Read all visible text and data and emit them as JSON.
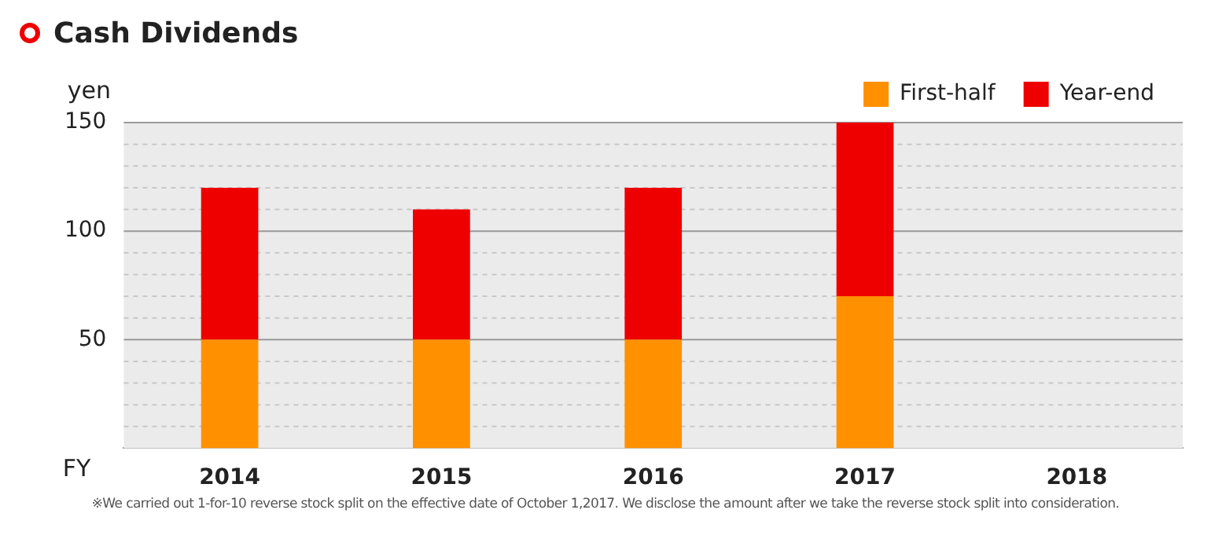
{
  "chart_data": {
    "type": "bar",
    "title": "Cash Dividends",
    "xlabel": "FY",
    "ylabel": "yen",
    "categories": [
      "2014",
      "2015",
      "2016",
      "2017",
      "2018"
    ],
    "series": [
      {
        "name": "First-half",
        "color": "#ff9100",
        "values": [
          50,
          50,
          50,
          70,
          null
        ]
      },
      {
        "name": "Year-end",
        "color": "#ee0000",
        "values": [
          70,
          60,
          70,
          80,
          null
        ]
      }
    ],
    "stacked": true,
    "ylim": [
      0,
      150
    ],
    "yticks": [
      {
        "value": 10,
        "label": null
      },
      {
        "value": 20,
        "label": null
      },
      {
        "value": 30,
        "label": null
      },
      {
        "value": 40,
        "label": null
      },
      50,
      {
        "value": 60,
        "label": null
      },
      {
        "value": 70,
        "label": null
      },
      {
        "value": 80,
        "label": null
      },
      {
        "value": 90,
        "label": null
      },
      100,
      {
        "value": 110,
        "label": null
      },
      {
        "value": 120,
        "label": null
      },
      {
        "value": 130,
        "label": null
      },
      {
        "value": 140,
        "label": null
      },
      150
    ],
    "grid": true,
    "legend": "top right",
    "annotations": [
      "※We carried out 1-for-10 reverse stock split on the effective date of October 1,2017. We disclose the amount after we take the reverse stock split into consideration."
    ]
  }
}
